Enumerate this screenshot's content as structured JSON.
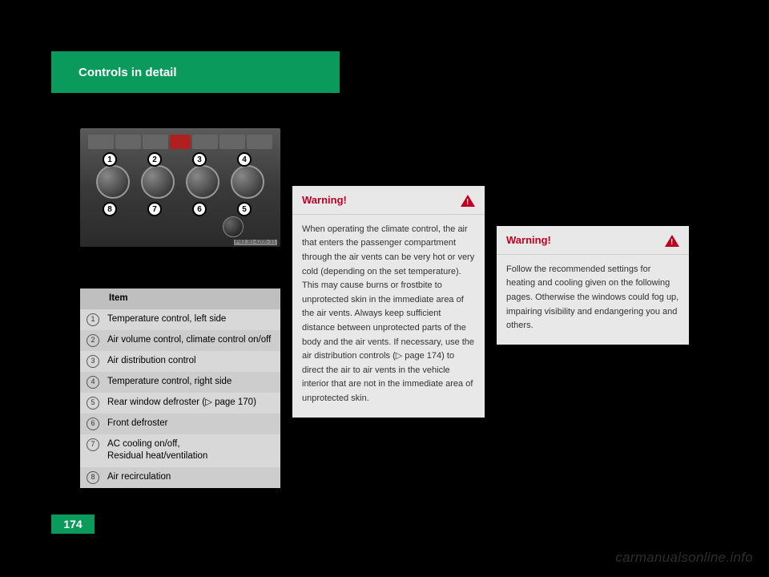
{
  "header": {
    "title": "Controls in detail"
  },
  "panel_image": {
    "ref": "P83.30-4205-31",
    "labels": [
      "1",
      "2",
      "3",
      "4",
      "5",
      "6",
      "7",
      "8"
    ]
  },
  "item_table": {
    "header": "Item",
    "rows": [
      {
        "n": "1",
        "text": "Temperature control, left side"
      },
      {
        "n": "2",
        "text": "Air volume control, climate control on/off"
      },
      {
        "n": "3",
        "text": "Air distribution control"
      },
      {
        "n": "4",
        "text": "Temperature control, right side"
      },
      {
        "n": "5",
        "text": "Rear window defroster (▷ page 170)"
      },
      {
        "n": "6",
        "text": "Front defroster"
      },
      {
        "n": "7",
        "text": "AC cooling on/off,\nResidual heat/ventilation"
      },
      {
        "n": "8",
        "text": "Air recirculation"
      }
    ]
  },
  "warnings": {
    "left": {
      "title": "Warning!",
      "body": "When operating the climate control, the air that enters the passenger compartment through the air vents can be very hot or very cold (depending on the set temperature). This may cause burns or frostbite to unprotected skin in the immediate area of the air vents. Always keep sufficient distance between unprotected parts of the body and the air vents. If necessary, use the air distribution controls (▷ page 174) to direct the air to air vents in the vehicle interior that are not in the immediate area of unprotected skin."
    },
    "right": {
      "title": "Warning!",
      "body": "Follow the recommended settings for heating and cooling given on the following pages. Otherwise the windows could fog up, impairing visibility and endangering you and others."
    }
  },
  "page_number": "174",
  "watermark": "carmanualsonline.info",
  "colors": {
    "brand_green": "#0a9b5c",
    "warning_red": "#c00020",
    "panel_bg": "#e8e8e8",
    "table_bg": "#cdcdcd",
    "table_alt": "#d8d8d8"
  }
}
